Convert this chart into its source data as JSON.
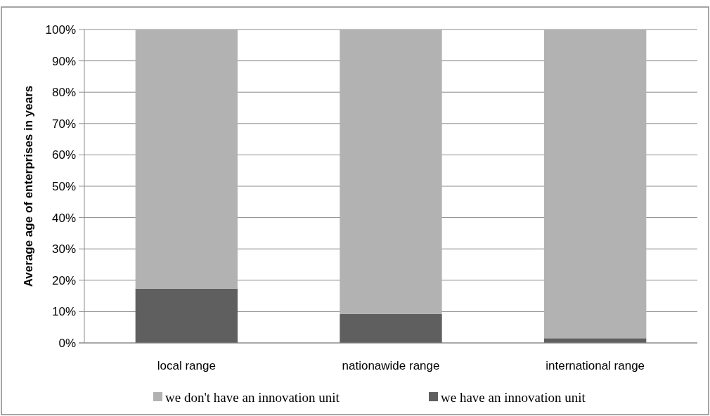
{
  "chart_data": {
    "type": "bar",
    "stacked": true,
    "ylabel": "Average age of enterprises in years",
    "categories": [
      "local range",
      "nationawide range",
      "international range"
    ],
    "series": [
      {
        "name": "we have an innovation unit",
        "color": "#5f5f5f",
        "values": [
          17.3,
          9.2,
          1.5
        ]
      },
      {
        "name": "we don't have an innovation unit",
        "color": "#b2b2b2",
        "values": [
          82.7,
          90.8,
          98.5
        ]
      }
    ],
    "ylim": [
      0,
      100
    ],
    "yticks": [
      {
        "value": 0,
        "label": "0%"
      },
      {
        "value": 10,
        "label": "10%"
      },
      {
        "value": 20,
        "label": "20%"
      },
      {
        "value": 30,
        "label": "30%"
      },
      {
        "value": 40,
        "label": "40%"
      },
      {
        "value": 50,
        "label": "50%"
      },
      {
        "value": 60,
        "label": "60%"
      },
      {
        "value": 70,
        "label": "70%"
      },
      {
        "value": 80,
        "label": "80%"
      },
      {
        "value": 90,
        "label": "90%"
      },
      {
        "value": 100,
        "label": "100%"
      }
    ],
    "grid": "y",
    "legend": "bottom"
  }
}
